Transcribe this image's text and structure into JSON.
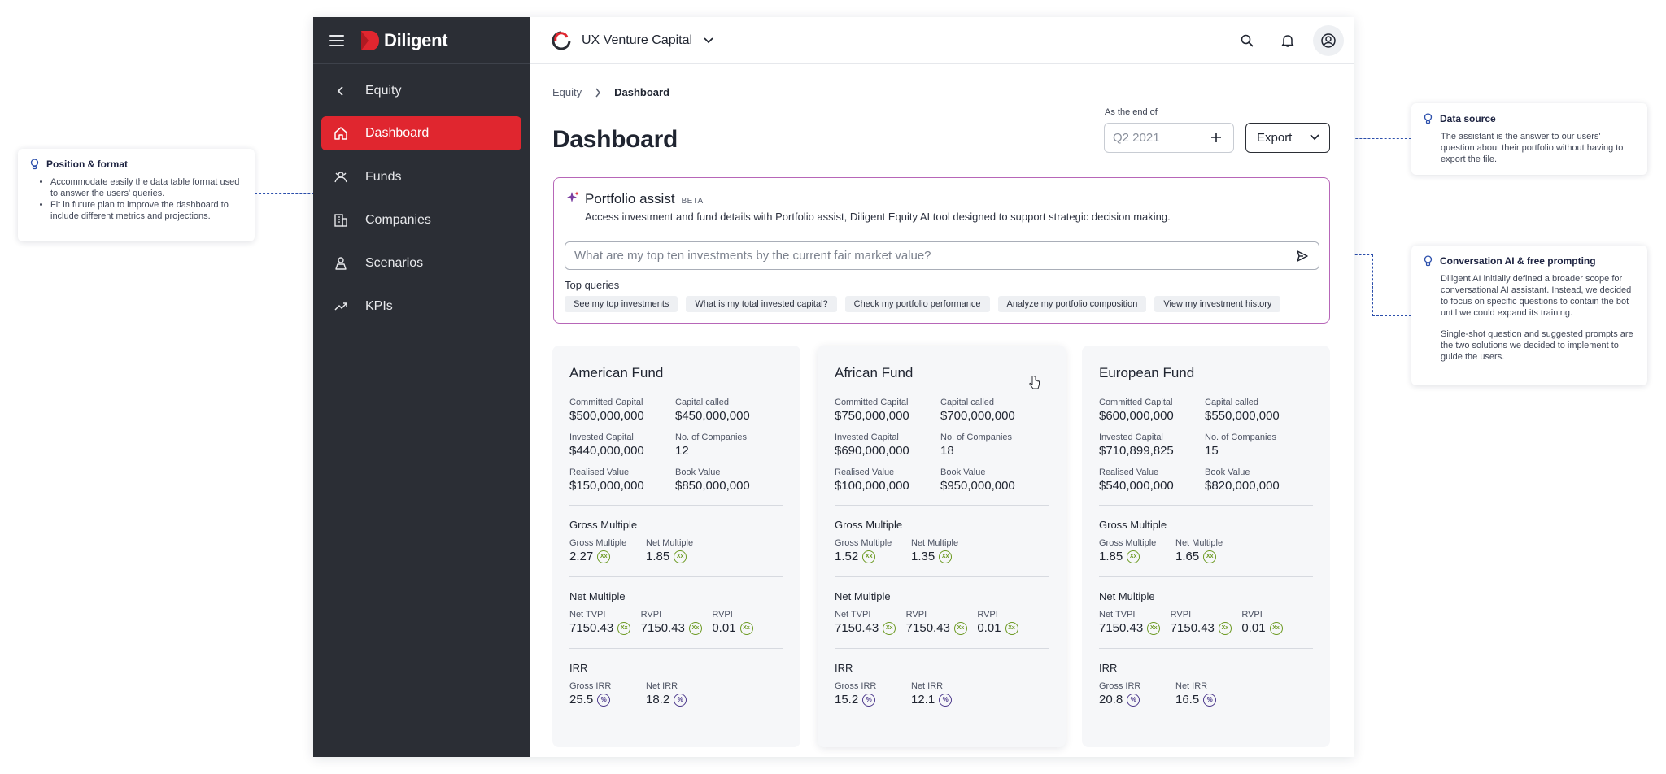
{
  "app": {
    "brand": "Diligent",
    "org_name": "UX Venture Capital",
    "accent_color": "#e0262f"
  },
  "sidebar": {
    "back_label": "Equity",
    "items": [
      {
        "label": "Dashboard",
        "icon": "home-icon",
        "active": true
      },
      {
        "label": "Funds",
        "icon": "funds-icon",
        "active": false
      },
      {
        "label": "Companies",
        "icon": "building-icon",
        "active": false
      },
      {
        "label": "Scenarios",
        "icon": "scenarios-icon",
        "active": false
      },
      {
        "label": "KPIs",
        "icon": "trend-icon",
        "active": false
      }
    ]
  },
  "header": {
    "breadcrumb": [
      "Equity",
      "Dashboard"
    ],
    "title": "Dashboard",
    "as_of_label": "As the end of",
    "as_of_placeholder": "Q2 2021",
    "export_label": "Export"
  },
  "assist": {
    "title": "Portfolio assist",
    "badge": "BETA",
    "description": "Access investment and fund details with Portfolio assist, Diligent Equity AI tool designed to support strategic decision making.",
    "placeholder": "What are my top ten investments by the current fair market value?",
    "top_queries_label": "Top queries",
    "queries": [
      "See my top investments",
      "What is my total invested capital?",
      "Check my portfolio performance",
      "Analyze my portfolio composition",
      "View my investment history"
    ]
  },
  "labels": {
    "committed": "Committed Capital",
    "called": "Capital called",
    "invested": "Invested Capital",
    "companies": "No. of Companies",
    "realised": "Realised Value",
    "book": "Book Value",
    "gross_multiple": "Gross Multiple",
    "net_multiple_section": "Net Multiple",
    "net_multiple": "Net Multiple",
    "net_tvpi": "Net TVPI",
    "rvpi": "RVPI",
    "irr": "IRR",
    "gross_irr": "Gross IRR",
    "net_irr": "Net IRR",
    "x_badge": "Xx",
    "pct_badge": "%"
  },
  "funds": [
    {
      "name": "American Fund",
      "committed": "$500,000,000",
      "called": "$450,000,000",
      "invested": "$440,000,000",
      "companies": "12",
      "realised": "$150,000,000",
      "book": "$850,000,000",
      "gross_multiple": "2.27",
      "net_multiple": "1.85",
      "net_tvpi": "7150.43",
      "rvpi_1": "7150.43",
      "rvpi_2": "0.01",
      "gross_irr": "25.5",
      "net_irr": "18.2"
    },
    {
      "name": "African Fund",
      "committed": "$750,000,000",
      "called": "$700,000,000",
      "invested": "$690,000,000",
      "companies": "18",
      "realised": "$100,000,000",
      "book": "$950,000,000",
      "gross_multiple": "1.52",
      "net_multiple": "1.35",
      "net_tvpi": "7150.43",
      "rvpi_1": "7150.43",
      "rvpi_2": "0.01",
      "gross_irr": "15.2",
      "net_irr": "12.1"
    },
    {
      "name": "European Fund",
      "committed": "$600,000,000",
      "called": "$550,000,000",
      "invested": "$710,899,825",
      "companies": "15",
      "realised": "$540,000,000",
      "book": "$820,000,000",
      "gross_multiple": "1.85",
      "net_multiple": "1.65",
      "net_tvpi": "7150.43",
      "rvpi_1": "7150.43",
      "rvpi_2": "0.01",
      "gross_irr": "20.8",
      "net_irr": "16.5"
    }
  ],
  "callouts": {
    "position": {
      "title": "Position & format",
      "bullets": [
        "Accommodate easily the data table format used to answer the users' queries.",
        "Fit in future plan to improve the dashboard to include different metrics and projections."
      ]
    },
    "data_source": {
      "title": "Data source",
      "text": "The assistant is the answer to our users' question about their portfolio without having to export the file."
    },
    "conversation": {
      "title": "Conversation AI & free prompting",
      "text_1": "Diligent AI initially defined a broader scope for conversational AI assistant. Instead, we decided to focus on specific questions to contain the bot until we could expand its training.",
      "text_2": "Single-shot question and suggested prompts are the two solutions we decided to implement to guide the users."
    }
  }
}
